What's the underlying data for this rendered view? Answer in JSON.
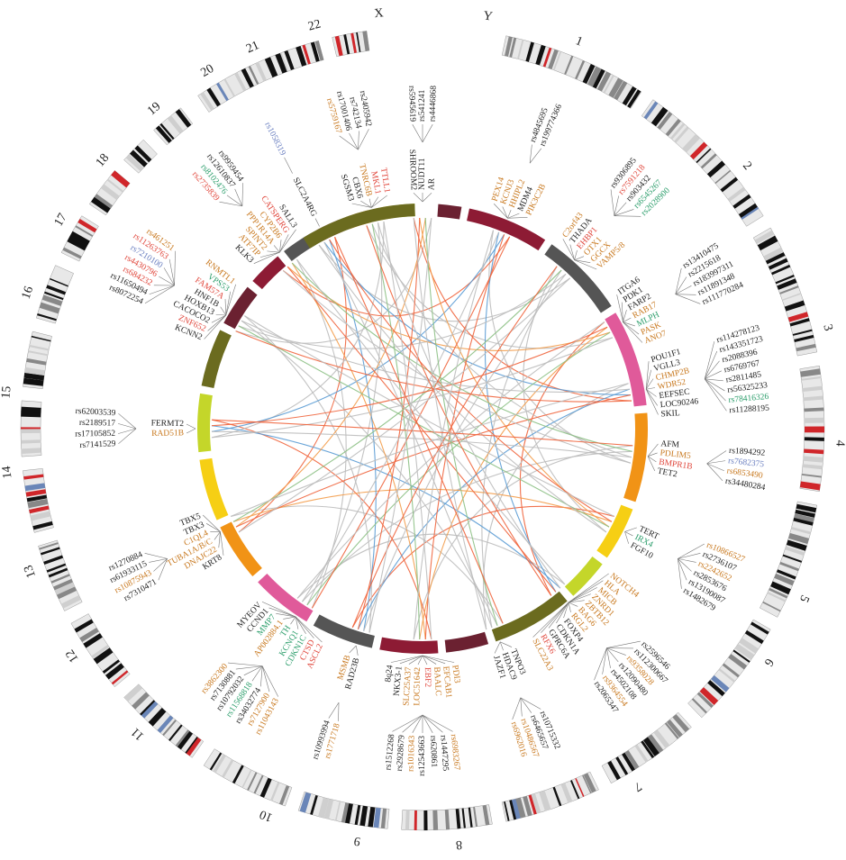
{
  "chart_data": {
    "type": "circos",
    "chromosomes": [
      "1",
      "2",
      "3",
      "4",
      "5",
      "6",
      "7",
      "8",
      "9",
      "10",
      "11",
      "12",
      "13",
      "14",
      "15",
      "16",
      "17",
      "18",
      "19",
      "20",
      "21",
      "22",
      "X",
      "Y"
    ],
    "groups": [
      {
        "genes": [
          {
            "label": "PEX14",
            "color": "#c8781e"
          },
          {
            "label": "KCNJ3",
            "color": "#c8781e"
          },
          {
            "label": "HHIPL2",
            "color": "#c8781e"
          },
          {
            "label": "MDM4",
            "color": "#222222"
          },
          {
            "label": "PIK3C2B",
            "color": "#c8781e"
          }
        ],
        "snps": [
          {
            "label": "rs4845695",
            "color": "#222222"
          },
          {
            "label": "rs199774366",
            "color": "#222222"
          }
        ]
      },
      {
        "genes": [
          {
            "label": "C2orf43",
            "color": "#c8781e"
          },
          {
            "label": "THADA",
            "color": "#222222"
          },
          {
            "label": "EHBP1",
            "color": "#e0453a"
          },
          {
            "label": "OTX1",
            "color": "#c8781e"
          },
          {
            "label": "GGCX",
            "color": "#c8781e"
          },
          {
            "label": "VAMP5/8",
            "color": "#c8781e"
          }
        ],
        "snps": [
          {
            "label": "rs9306895",
            "color": "#222222"
          },
          {
            "label": "rs7591218",
            "color": "#e0453a"
          },
          {
            "label": "rs903432",
            "color": "#222222"
          },
          {
            "label": "rs6545267",
            "color": "#2a9d6a"
          },
          {
            "label": "rs2028900",
            "color": "#2a9d6a"
          }
        ]
      },
      {
        "genes": [
          {
            "label": "ITGA6",
            "color": "#222222"
          },
          {
            "label": "PDK1",
            "color": "#222222"
          },
          {
            "label": "FARP2",
            "color": "#222222"
          },
          {
            "label": "RAB17",
            "color": "#c8781e"
          },
          {
            "label": "MLPH",
            "color": "#2a9d6a"
          },
          {
            "label": "PASK",
            "color": "#c8781e"
          },
          {
            "label": "ANO7",
            "color": "#c8781e"
          }
        ],
        "snps": [
          {
            "label": "rs13410475",
            "color": "#222222"
          },
          {
            "label": "rs2215618",
            "color": "#222222"
          },
          {
            "label": "rs183997311",
            "color": "#222222"
          },
          {
            "label": "rs11891348",
            "color": "#222222"
          },
          {
            "label": "rs111770284",
            "color": "#222222"
          }
        ]
      },
      {
        "genes": [
          {
            "label": "POU1F1",
            "color": "#222222"
          },
          {
            "label": "VGLL3",
            "color": "#222222"
          },
          {
            "label": "CHMP2B",
            "color": "#c8781e"
          },
          {
            "label": "WDR52",
            "color": "#c8781e"
          },
          {
            "label": "EEFSEC",
            "color": "#222222"
          },
          {
            "label": "LOC90246",
            "color": "#222222"
          },
          {
            "label": "SKIL",
            "color": "#222222"
          }
        ],
        "snps": [
          {
            "label": "rs114278123",
            "color": "#222222"
          },
          {
            "label": "rs143351723",
            "color": "#222222"
          },
          {
            "label": "rs2088396",
            "color": "#222222"
          },
          {
            "label": "rs6769767",
            "color": "#222222"
          },
          {
            "label": "rs2811485",
            "color": "#222222"
          },
          {
            "label": "rs56325233",
            "color": "#222222"
          },
          {
            "label": "rs78416326",
            "color": "#2a9d6a"
          },
          {
            "label": "rs11288195",
            "color": "#222222"
          }
        ]
      },
      {
        "genes": [
          {
            "label": "AFM",
            "color": "#222222"
          },
          {
            "label": "PDLIM5",
            "color": "#c8781e"
          },
          {
            "label": "BMPR1B",
            "color": "#e0453a"
          },
          {
            "label": "TET2",
            "color": "#222222"
          }
        ],
        "snps": [
          {
            "label": "rs1894292",
            "color": "#222222"
          },
          {
            "label": "rs7682375",
            "color": "#6a7fc0"
          },
          {
            "label": "rs6853490",
            "color": "#c8781e"
          },
          {
            "label": "rs34480284",
            "color": "#222222"
          }
        ]
      },
      {
        "genes": [
          {
            "label": "TERT",
            "color": "#222222"
          },
          {
            "label": "IRX4",
            "color": "#2a9d6a"
          },
          {
            "label": "FGF10",
            "color": "#222222"
          }
        ],
        "snps": [
          {
            "label": "rs10866527",
            "color": "#c8781e"
          },
          {
            "label": "rs2736107",
            "color": "#222222"
          },
          {
            "label": "rs2242652",
            "color": "#c8781e"
          },
          {
            "label": "rs2853676",
            "color": "#222222"
          },
          {
            "label": "rs13190087",
            "color": "#222222"
          },
          {
            "label": "rs1482679",
            "color": "#222222"
          }
        ]
      },
      {
        "genes": [
          {
            "label": "NOTCH4",
            "color": "#c8781e"
          },
          {
            "label": "HLA",
            "color": "#c8781e"
          },
          {
            "label": "MICB",
            "color": "#c8781e"
          },
          {
            "label": "ZNRD1",
            "color": "#c8781e"
          },
          {
            "label": "ZBTB12",
            "color": "#c8781e"
          },
          {
            "label": "BAG6",
            "color": "#c8781e"
          },
          {
            "label": "RGL2",
            "color": "#c8781e"
          },
          {
            "label": "FOXP4",
            "color": "#222222"
          },
          {
            "label": "CDKN1A",
            "color": "#222222"
          },
          {
            "label": "GPRC6A",
            "color": "#222222"
          },
          {
            "label": "RFX6",
            "color": "#e0453a"
          },
          {
            "label": "SLC22A3",
            "color": "#c8781e"
          }
        ],
        "snps": [
          {
            "label": "rs2596546",
            "color": "#222222"
          },
          {
            "label": "rs112300667",
            "color": "#222222"
          },
          {
            "label": "rs9358028",
            "color": "#c8781e"
          },
          {
            "label": "rs12090480",
            "color": "#222222"
          },
          {
            "label": "rs4502108",
            "color": "#222222"
          },
          {
            "label": "rs9364554",
            "color": "#c8781e"
          },
          {
            "label": "rs2065347",
            "color": "#222222"
          }
        ]
      },
      {
        "genes": [
          {
            "label": "TNPO3",
            "color": "#222222"
          },
          {
            "label": "HDAC9",
            "color": "#222222"
          },
          {
            "label": "JAZF1",
            "color": "#222222"
          }
        ],
        "snps": [
          {
            "label": "rs10715332",
            "color": "#222222"
          },
          {
            "label": "rs6465657",
            "color": "#222222"
          },
          {
            "label": "rs10486567",
            "color": "#c8781e"
          },
          {
            "label": "rs6962016",
            "color": "#c8781e"
          }
        ]
      },
      {
        "genes": [
          {
            "label": "PDI3",
            "color": "#c8781e"
          },
          {
            "label": "EFCAB1",
            "color": "#c8781e"
          },
          {
            "label": "BAALC",
            "color": "#c8781e"
          },
          {
            "label": "EBF2",
            "color": "#e0453a"
          },
          {
            "label": "LOC51642",
            "color": "#c8781e"
          },
          {
            "label": "SLC25A37",
            "color": "#c8781e"
          },
          {
            "label": "NKX3-1",
            "color": "#222222"
          },
          {
            "label": "8q24",
            "color": "#222222"
          }
        ],
        "snps": [
          {
            "label": "rs6983267",
            "color": "#c8781e"
          },
          {
            "label": "rs1447295",
            "color": "#222222"
          },
          {
            "label": "rs620861",
            "color": "#222222"
          },
          {
            "label": "rs12543663",
            "color": "#222222"
          },
          {
            "label": "rs1016343",
            "color": "#c8781e"
          },
          {
            "label": "rs2928679",
            "color": "#222222"
          },
          {
            "label": "rs1512268",
            "color": "#222222"
          }
        ]
      },
      {
        "genes": [
          {
            "label": "RAD23B",
            "color": "#222222"
          },
          {
            "label": "MSMB",
            "color": "#c8781e"
          }
        ],
        "snps": [
          {
            "label": "rs1771718",
            "color": "#c8781e"
          },
          {
            "label": "rs10993994",
            "color": "#222222"
          }
        ]
      },
      {
        "genes": [
          {
            "label": "ASCL2",
            "color": "#e0453a"
          },
          {
            "label": "CTSD",
            "color": "#e0453a"
          },
          {
            "label": "CDKN1C",
            "color": "#2a9d6a"
          },
          {
            "label": "KCNQ1",
            "color": "#2a9d6a"
          },
          {
            "label": "TH",
            "color": "#2a9d6a"
          },
          {
            "label": "AP002884.1",
            "color": "#c8781e"
          },
          {
            "label": "MMP7",
            "color": "#2a9d6a"
          },
          {
            "label": "CCND1",
            "color": "#222222"
          },
          {
            "label": "MYEOV",
            "color": "#222222"
          }
        ],
        "snps": [
          {
            "label": "rs11043143",
            "color": "#c8781e"
          },
          {
            "label": "rs7127900",
            "color": "#c8781e"
          },
          {
            "label": "rs34032774",
            "color": "#222222"
          },
          {
            "label": "rs11568818",
            "color": "#2a9d6a"
          },
          {
            "label": "rs10792032",
            "color": "#222222"
          },
          {
            "label": "rs7130881",
            "color": "#222222"
          },
          {
            "label": "rs3862300",
            "color": "#c8781e"
          }
        ]
      },
      {
        "genes": [
          {
            "label": "KRT8",
            "color": "#222222"
          },
          {
            "label": "DNAJC22",
            "color": "#c8781e"
          },
          {
            "label": "TUBA1A/B/C",
            "color": "#c8781e"
          },
          {
            "label": "C1QL4",
            "color": "#c8781e"
          },
          {
            "label": "TBX3",
            "color": "#222222"
          },
          {
            "label": "TBX5",
            "color": "#222222"
          }
        ],
        "snps": [
          {
            "label": "rs7310471",
            "color": "#222222"
          },
          {
            "label": "rs10875943",
            "color": "#c8781e"
          },
          {
            "label": "rs61933115",
            "color": "#222222"
          },
          {
            "label": "rs1270884",
            "color": "#222222"
          }
        ]
      },
      {
        "genes": [
          {
            "label": "RAD51B",
            "color": "#c8781e"
          },
          {
            "label": "FERMT2",
            "color": "#222222"
          }
        ],
        "snps": [
          {
            "label": "rs7141529",
            "color": "#222222"
          },
          {
            "label": "rs17105852",
            "color": "#222222"
          },
          {
            "label": "rs2189517",
            "color": "#222222"
          },
          {
            "label": "rs62003539",
            "color": "#222222"
          }
        ]
      },
      {
        "genes": [
          {
            "label": "KCNN2",
            "color": "#222222"
          },
          {
            "label": "ZNF652",
            "color": "#e0453a"
          },
          {
            "label": "CACOCO2",
            "color": "#222222"
          },
          {
            "label": "HOXB13",
            "color": "#222222"
          },
          {
            "label": "HNF1B",
            "color": "#222222"
          },
          {
            "label": "FAM57A",
            "color": "#e0453a"
          },
          {
            "label": "VPS53",
            "color": "#2a9d6a"
          },
          {
            "label": "RNMTL1",
            "color": "#c8781e"
          }
        ],
        "snps": [
          {
            "label": "rs8072254",
            "color": "#222222"
          },
          {
            "label": "rs11650494",
            "color": "#222222"
          },
          {
            "label": "rs684232",
            "color": "#e0453a"
          },
          {
            "label": "rs4430796",
            "color": "#e0453a"
          },
          {
            "label": "rs7210100",
            "color": "#6a7fc0"
          },
          {
            "label": "rs11263763",
            "color": "#e0453a"
          },
          {
            "label": "rs461251",
            "color": "#c8781e"
          }
        ]
      },
      {
        "genes": [
          {
            "label": "KLK3",
            "color": "#222222"
          },
          {
            "label": "ATF7IP",
            "color": "#c8781e"
          },
          {
            "label": "SPINT2",
            "color": "#c8781e"
          },
          {
            "label": "PPP1R14A",
            "color": "#c8781e"
          },
          {
            "label": "CYP2B6",
            "color": "#c8781e"
          },
          {
            "label": "CATSPERG",
            "color": "#e0453a"
          },
          {
            "label": "SALL3",
            "color": "#222222"
          }
        ],
        "snps": [
          {
            "label": "rs2735839",
            "color": "#e0453a"
          },
          {
            "label": "rs8102476",
            "color": "#2a9d6a"
          },
          {
            "label": "rs12610837",
            "color": "#222222"
          },
          {
            "label": "rs9959454",
            "color": "#222222"
          }
        ]
      },
      {
        "genes": [
          {
            "label": "SLC2A4RG",
            "color": "#222222"
          }
        ],
        "snps": [
          {
            "label": "rs1058319",
            "color": "#6a7fc0"
          }
        ]
      },
      {
        "genes": [
          {
            "label": "SGSM3",
            "color": "#222222"
          },
          {
            "label": "CBX6",
            "color": "#222222"
          },
          {
            "label": "TNRC6B",
            "color": "#c8781e"
          },
          {
            "label": "MKL1",
            "color": "#e0453a"
          },
          {
            "label": "TTLL1",
            "color": "#e0453a"
          }
        ],
        "snps": [
          {
            "label": "rs5759167",
            "color": "#c8781e"
          },
          {
            "label": "rs17001406",
            "color": "#222222"
          },
          {
            "label": "rs742134",
            "color": "#222222"
          },
          {
            "label": "rs2405942",
            "color": "#222222"
          }
        ]
      },
      {
        "genes": [
          {
            "label": "SHROOM2",
            "color": "#222222"
          },
          {
            "label": "NUDT11",
            "color": "#222222"
          },
          {
            "label": "AR",
            "color": "#222222"
          }
        ],
        "snps": [
          {
            "label": "rs5945619",
            "color": "#222222"
          },
          {
            "label": "rs541241",
            "color": "#222222"
          },
          {
            "label": "rs4446868",
            "color": "#222222"
          }
        ]
      }
    ]
  }
}
